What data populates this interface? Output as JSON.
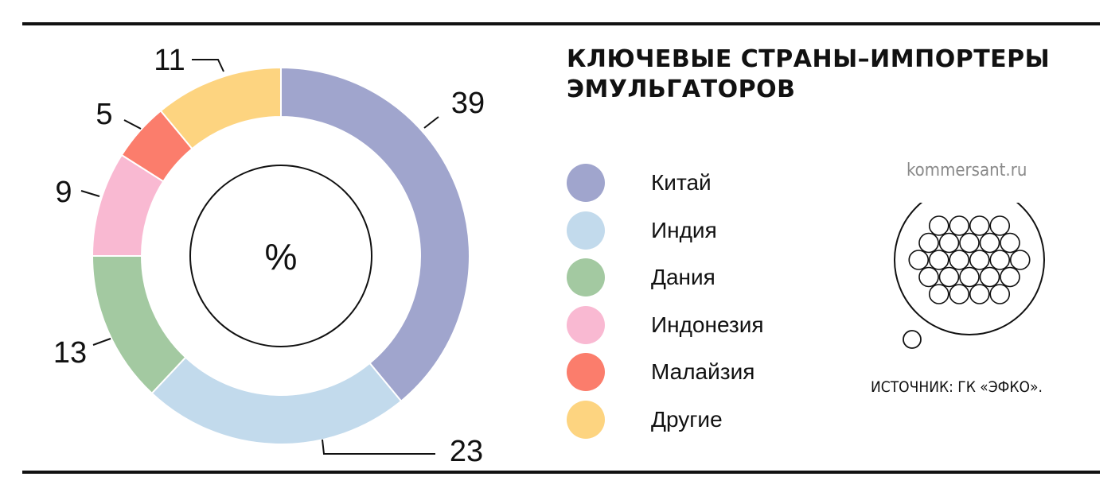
{
  "title_lines": [
    "КЛЮЧЕВЫЕ СТРАНЫ–ИМПОРТЕРЫ",
    "ЭМУЛЬГАТОРОВ"
  ],
  "site": "kommersant.ru",
  "source": "ИСТОЧНИК: ГК «ЭФКО».",
  "legend": [
    {
      "label": "Китай",
      "color": "#a0a5cd"
    },
    {
      "label": "Индия",
      "color": "#c2daec"
    },
    {
      "label": "Дания",
      "color": "#a3c9a1"
    },
    {
      "label": "Индонезия",
      "color": "#f9b9d2"
    },
    {
      "label": "Малайзия",
      "color": "#fb7d6c"
    },
    {
      "label": "Другие",
      "color": "#fdd480"
    }
  ],
  "chart_data": {
    "type": "pie",
    "variant": "donut",
    "title": "КЛЮЧЕВЫЕ СТРАНЫ–ИМПОРТЕРЫ ЭМУЛЬГАТОРОВ",
    "center_label": "%",
    "categories": [
      "Китай",
      "Индия",
      "Дания",
      "Индонезия",
      "Малайзия",
      "Другие"
    ],
    "values": [
      39,
      23,
      13,
      9,
      5,
      11
    ],
    "colors": [
      "#a0a5cd",
      "#c2daec",
      "#a3c9a1",
      "#f9b9d2",
      "#fb7d6c",
      "#fdd480"
    ],
    "start_angle": "12 o'clock",
    "direction": "clockwise",
    "legend_position": "right"
  }
}
